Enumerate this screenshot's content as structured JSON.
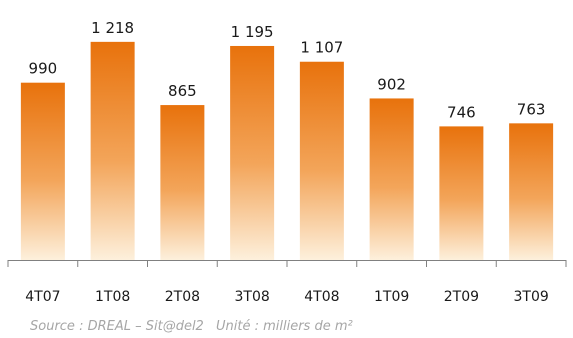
{
  "chart_data": {
    "type": "bar",
    "categories": [
      "4T07",
      "1T08",
      "2T08",
      "3T08",
      "4T08",
      "1T09",
      "2T09",
      "3T09"
    ],
    "values": [
      990,
      1218,
      865,
      1195,
      1107,
      902,
      746,
      763
    ],
    "value_labels": [
      "990",
      "1 218",
      "865",
      "1 195",
      "1 107",
      "902",
      "746",
      "763"
    ],
    "title": "",
    "xlabel": "",
    "ylabel": "",
    "ylim": [
      0,
      1340
    ],
    "grid": false,
    "legend": "none",
    "colors": {
      "bar_top": "#e8720c",
      "bar_mid": "#f3a55a",
      "bar_bottom": "#fdf0dc",
      "axis": "#808080",
      "text": "#1a1a1a"
    }
  },
  "footer": {
    "source": "Source : DREAL – Sit@del2",
    "unit": "Unité : milliers de m²"
  }
}
